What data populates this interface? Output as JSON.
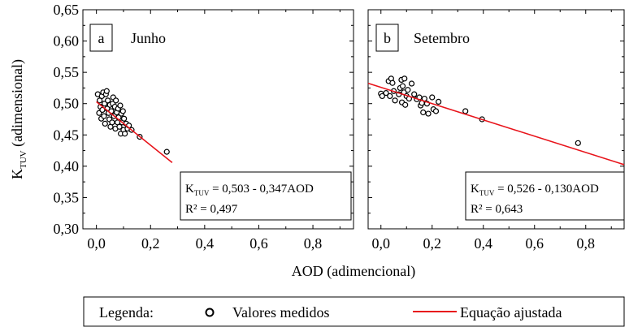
{
  "chart_data": [
    {
      "type": "scatter",
      "panel_letter": "a",
      "title": "Junho",
      "xlim": [
        -0.05,
        0.95
      ],
      "ylim": [
        0.3,
        0.65
      ],
      "x_ticks": [
        "0,0",
        "0,2",
        "0,4",
        "0,6",
        "0,8"
      ],
      "y_ticks": [
        "0,30",
        "0,35",
        "0,40",
        "0,45",
        "0,50",
        "0,55",
        "0,60",
        "0,65"
      ],
      "ylabel_main": "K",
      "ylabel_sub": "TUV",
      "ylabel_rest": " (adimensional)",
      "series": [
        {
          "name": "Valores medidos",
          "points": [
            [
              0.005,
              0.515
            ],
            [
              0.01,
              0.485
            ],
            [
              0.012,
              0.505
            ],
            [
              0.015,
              0.495
            ],
            [
              0.018,
              0.476
            ],
            [
              0.02,
              0.512
            ],
            [
              0.022,
              0.49
            ],
            [
              0.025,
              0.518
            ],
            [
              0.028,
              0.48
            ],
            [
              0.03,
              0.5
            ],
            [
              0.032,
              0.468
            ],
            [
              0.035,
              0.515
            ],
            [
              0.038,
              0.52
            ],
            [
              0.04,
              0.492
            ],
            [
              0.042,
              0.505
            ],
            [
              0.045,
              0.485
            ],
            [
              0.048,
              0.475
            ],
            [
              0.05,
              0.498
            ],
            [
              0.052,
              0.463
            ],
            [
              0.055,
              0.488
            ],
            [
              0.058,
              0.47
            ],
            [
              0.06,
              0.5
            ],
            [
              0.062,
              0.51
            ],
            [
              0.065,
              0.48
            ],
            [
              0.068,
              0.495
            ],
            [
              0.07,
              0.46
            ],
            [
              0.072,
              0.505
            ],
            [
              0.075,
              0.486
            ],
            [
              0.078,
              0.47
            ],
            [
              0.08,
              0.492
            ],
            [
              0.082,
              0.478
            ],
            [
              0.085,
              0.463
            ],
            [
              0.088,
              0.497
            ],
            [
              0.09,
              0.452
            ],
            [
              0.092,
              0.484
            ],
            [
              0.095,
              0.47
            ],
            [
              0.098,
              0.488
            ],
            [
              0.1,
              0.458
            ],
            [
              0.102,
              0.476
            ],
            [
              0.105,
              0.452
            ],
            [
              0.11,
              0.468
            ],
            [
              0.115,
              0.46
            ],
            [
              0.12,
              0.465
            ],
            [
              0.13,
              0.458
            ],
            [
              0.16,
              0.447
            ],
            [
              0.26,
              0.423
            ]
          ]
        },
        {
          "name": "Equação ajustada",
          "line": [
            [
              0.0,
              0.503
            ],
            [
              0.28,
              0.4058
            ]
          ]
        }
      ],
      "equation_main": "K",
      "equation_sub": "TUV",
      "equation_rest": " = 0,503 - 0,347AOD",
      "r2": "R² = 0,497"
    },
    {
      "type": "scatter",
      "panel_letter": "b",
      "title": "Setembro",
      "xlim": [
        -0.05,
        0.95
      ],
      "ylim": [
        0.3,
        0.65
      ],
      "x_ticks": [
        "0,0",
        "0,2",
        "0,4",
        "0,6",
        "0,8"
      ],
      "series": [
        {
          "name": "Valores medidos",
          "points": [
            [
              0.0,
              0.516
            ],
            [
              0.005,
              0.512
            ],
            [
              0.02,
              0.517
            ],
            [
              0.03,
              0.536
            ],
            [
              0.035,
              0.512
            ],
            [
              0.04,
              0.54
            ],
            [
              0.045,
              0.533
            ],
            [
              0.05,
              0.52
            ],
            [
              0.055,
              0.505
            ],
            [
              0.07,
              0.515
            ],
            [
              0.075,
              0.525
            ],
            [
              0.08,
              0.538
            ],
            [
              0.082,
              0.502
            ],
            [
              0.085,
              0.528
            ],
            [
              0.09,
              0.518
            ],
            [
              0.092,
              0.54
            ],
            [
              0.095,
              0.498
            ],
            [
              0.1,
              0.512
            ],
            [
              0.105,
              0.522
            ],
            [
              0.11,
              0.508
            ],
            [
              0.12,
              0.532
            ],
            [
              0.13,
              0.515
            ],
            [
              0.14,
              0.507
            ],
            [
              0.15,
              0.51
            ],
            [
              0.155,
              0.497
            ],
            [
              0.16,
              0.501
            ],
            [
              0.165,
              0.486
            ],
            [
              0.17,
              0.508
            ],
            [
              0.18,
              0.5
            ],
            [
              0.185,
              0.484
            ],
            [
              0.2,
              0.51
            ],
            [
              0.205,
              0.491
            ],
            [
              0.215,
              0.488
            ],
            [
              0.225,
              0.503
            ],
            [
              0.33,
              0.488
            ],
            [
              0.395,
              0.475
            ],
            [
              0.77,
              0.437
            ]
          ]
        },
        {
          "name": "Equação ajustada",
          "line": [
            [
              -0.05,
              0.5325
            ],
            [
              0.95,
              0.4025
            ]
          ]
        }
      ],
      "equation_main": "K",
      "equation_sub": "TUV",
      "equation_rest": " = 0,526 - 0,130AOD",
      "r2": "R² = 0,643"
    }
  ],
  "xlabel": "AOD (adimencional)",
  "legend": {
    "title": "Legenda:",
    "measured_label": "Valores medidos",
    "fit_label": "Equação ajustada"
  },
  "colors": {
    "fit_line": "#e8141b",
    "points": "#000000"
  }
}
